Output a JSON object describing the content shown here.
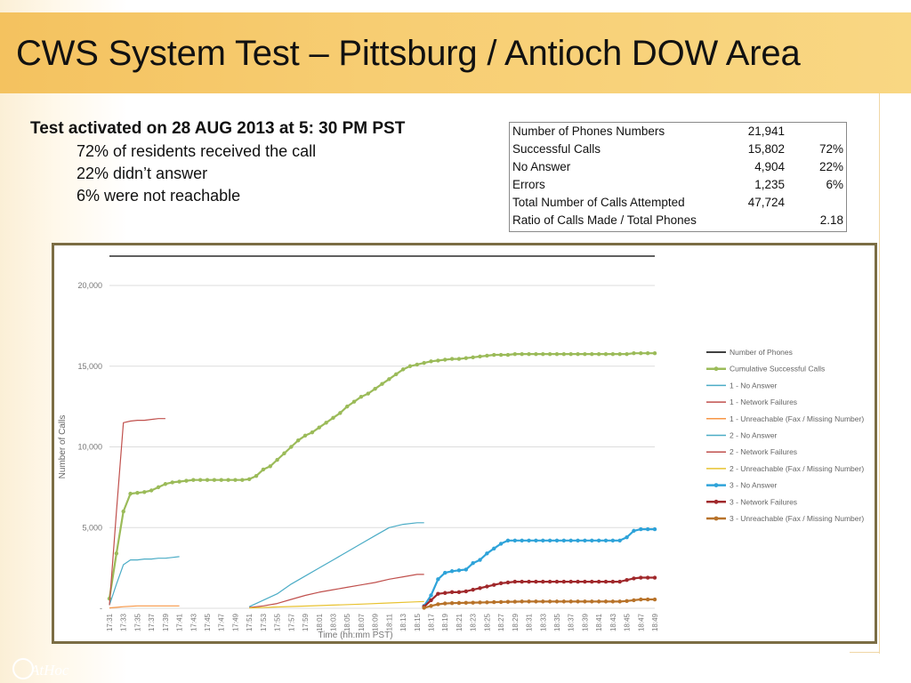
{
  "slide": {
    "title": "CWS System Test – Pittsburg / Antioch DOW Area",
    "headline": "Test activated on 28 AUG 2013 at 5: 30 PM PST",
    "bullets": [
      "72% of residents received the call",
      "22% didn’t answer",
      "6% were not reachable"
    ],
    "logo_text": "AtHoc"
  },
  "stats_table": [
    {
      "label": "Number of Phones Numbers",
      "value": "21,941",
      "pct": ""
    },
    {
      "label": "Successful Calls",
      "value": "15,802",
      "pct": "72%"
    },
    {
      "label": "No Answer",
      "value": "4,904",
      "pct": "22%"
    },
    {
      "label": "Errors",
      "value": "1,235",
      "pct": "6%"
    },
    {
      "label": "Total Number of Calls Attempted",
      "value": "47,724",
      "pct": ""
    },
    {
      "label": "Ratio of Calls Made / Total Phones",
      "value": "",
      "pct": "2.18"
    }
  ],
  "chart_data": {
    "type": "line",
    "xlabel": "Time (hh:mm PST)",
    "ylabel": "Number of Calls",
    "ylim": [
      0,
      20000
    ],
    "yticks": [
      0,
      5000,
      10000,
      15000,
      20000
    ],
    "ytick_labels": [
      "-",
      "5,000",
      "10,000",
      "15,000",
      "20,000"
    ],
    "x_tick_labels": [
      "17:31",
      "17:33",
      "17:35",
      "17:37",
      "17:39",
      "17:41",
      "17:43",
      "17:45",
      "17:47",
      "17:49",
      "17:51",
      "17:53",
      "17:55",
      "17:57",
      "17:59",
      "18:01",
      "18:03",
      "18:05",
      "18:07",
      "18:09",
      "18:11",
      "18:13",
      "18:15",
      "18:17",
      "18:19",
      "18:21",
      "18:23",
      "18:25",
      "18:27",
      "18:29",
      "18:31",
      "18:33",
      "18:35",
      "18:37",
      "18:39",
      "18:41",
      "18:43",
      "18:45",
      "18:47",
      "18:49"
    ],
    "x_range": [
      "17:31",
      "18:49"
    ],
    "grid": "horizontal",
    "legend_position": "right",
    "series": [
      {
        "name": "Number of Phones",
        "color": "#000000",
        "marker": false,
        "x": [
          "17:31",
          "18:49"
        ],
        "y": [
          21941,
          21941
        ]
      },
      {
        "name": "Cumulative Successful Calls",
        "color": "#9bbb59",
        "marker": true,
        "x": [
          "17:31",
          "17:32",
          "17:33",
          "17:34",
          "17:35",
          "17:36",
          "17:37",
          "17:38",
          "17:39",
          "17:40",
          "17:41",
          "17:42",
          "17:43",
          "17:44",
          "17:45",
          "17:46",
          "17:47",
          "17:48",
          "17:49",
          "17:50",
          "17:51",
          "17:52",
          "17:53",
          "17:54",
          "17:55",
          "17:56",
          "17:57",
          "17:58",
          "17:59",
          "18:00",
          "18:01",
          "18:02",
          "18:03",
          "18:04",
          "18:05",
          "18:06",
          "18:07",
          "18:08",
          "18:09",
          "18:10",
          "18:11",
          "18:12",
          "18:13",
          "18:14",
          "18:15",
          "18:16",
          "18:17",
          "18:18",
          "18:19",
          "18:20",
          "18:21",
          "18:22",
          "18:23",
          "18:24",
          "18:25",
          "18:26",
          "18:27",
          "18:28",
          "18:29",
          "18:30",
          "18:31",
          "18:32",
          "18:33",
          "18:34",
          "18:35",
          "18:36",
          "18:37",
          "18:38",
          "18:39",
          "18:40",
          "18:41",
          "18:42",
          "18:43",
          "18:44",
          "18:45",
          "18:46",
          "18:47",
          "18:48",
          "18:49"
        ],
        "y": [
          600,
          3400,
          6000,
          7100,
          7150,
          7200,
          7300,
          7500,
          7700,
          7800,
          7850,
          7900,
          7950,
          7950,
          7950,
          7950,
          7950,
          7950,
          7950,
          7950,
          8000,
          8200,
          8600,
          8800,
          9200,
          9600,
          10000,
          10400,
          10700,
          10900,
          11200,
          11500,
          11800,
          12100,
          12500,
          12800,
          13100,
          13300,
          13600,
          13900,
          14200,
          14500,
          14800,
          15000,
          15100,
          15200,
          15300,
          15350,
          15400,
          15450,
          15450,
          15500,
          15550,
          15600,
          15650,
          15700,
          15700,
          15700,
          15750,
          15750,
          15750,
          15750,
          15750,
          15750,
          15750,
          15750,
          15750,
          15750,
          15750,
          15750,
          15750,
          15750,
          15750,
          15750,
          15750,
          15800,
          15800,
          15800,
          15800
        ]
      },
      {
        "name": "1 - No Answer",
        "color": "#4bacc6",
        "marker": false,
        "x": [
          "17:31",
          "17:32",
          "17:33",
          "17:34",
          "17:35",
          "17:36",
          "17:37",
          "17:38",
          "17:39",
          "17:40",
          "17:41"
        ],
        "y": [
          200,
          1500,
          2700,
          3000,
          3000,
          3050,
          3050,
          3100,
          3100,
          3150,
          3200
        ]
      },
      {
        "name": "1 - Network Failures",
        "color": "#c0504d",
        "marker": false,
        "x": [
          "17:31",
          "17:32",
          "17:33",
          "17:34",
          "17:35",
          "17:36",
          "17:37",
          "17:38",
          "17:39"
        ],
        "y": [
          200,
          6000,
          11500,
          11600,
          11650,
          11650,
          11700,
          11750,
          11750
        ]
      },
      {
        "name": "1 - Unreachable (Fax / Missing Number)",
        "color": "#f79646",
        "marker": false,
        "x": [
          "17:31",
          "17:33",
          "17:35",
          "17:41"
        ],
        "y": [
          20,
          100,
          150,
          150
        ]
      },
      {
        "name": "2 - No Answer",
        "color": "#4bacc6",
        "marker": false,
        "x": [
          "17:51",
          "17:53",
          "17:55",
          "17:57",
          "17:59",
          "18:01",
          "18:03",
          "18:05",
          "18:07",
          "18:09",
          "18:11",
          "18:13",
          "18:15",
          "18:16"
        ],
        "y": [
          100,
          500,
          900,
          1500,
          2000,
          2500,
          3000,
          3500,
          4000,
          4500,
          5000,
          5200,
          5300,
          5300
        ]
      },
      {
        "name": "2 - Network Failures",
        "color": "#c0504d",
        "marker": false,
        "x": [
          "17:51",
          "17:53",
          "17:55",
          "17:57",
          "17:59",
          "18:01",
          "18:03",
          "18:05",
          "18:07",
          "18:09",
          "18:11",
          "18:13",
          "18:15",
          "18:16"
        ],
        "y": [
          50,
          150,
          300,
          550,
          800,
          1000,
          1150,
          1300,
          1450,
          1600,
          1800,
          1950,
          2100,
          2100
        ]
      },
      {
        "name": "2 - Unreachable (Fax / Missing Number)",
        "color": "#e8c230",
        "marker": false,
        "x": [
          "17:51",
          "17:55",
          "17:59",
          "18:03",
          "18:07",
          "18:11",
          "18:15",
          "18:16"
        ],
        "y": [
          20,
          80,
          140,
          200,
          260,
          330,
          400,
          420
        ]
      },
      {
        "name": "3 - No Answer",
        "color": "#2ea3d9",
        "marker": true,
        "x": [
          "18:16",
          "18:17",
          "18:18",
          "18:19",
          "18:20",
          "18:21",
          "18:22",
          "18:23",
          "18:24",
          "18:25",
          "18:26",
          "18:27",
          "18:28",
          "18:29",
          "18:30",
          "18:31",
          "18:32",
          "18:33",
          "18:34",
          "18:35",
          "18:36",
          "18:37",
          "18:38",
          "18:39",
          "18:40",
          "18:41",
          "18:42",
          "18:43",
          "18:44",
          "18:45",
          "18:46",
          "18:47",
          "18:48",
          "18:49"
        ],
        "y": [
          150,
          800,
          1800,
          2200,
          2300,
          2350,
          2400,
          2800,
          3000,
          3400,
          3700,
          4000,
          4200,
          4200,
          4200,
          4200,
          4200,
          4200,
          4200,
          4200,
          4200,
          4200,
          4200,
          4200,
          4200,
          4200,
          4200,
          4200,
          4200,
          4400,
          4800,
          4900,
          4900,
          4900
        ]
      },
      {
        "name": "3 - Network Failures",
        "color": "#a0282b",
        "marker": true,
        "x": [
          "18:16",
          "18:17",
          "18:18",
          "18:19",
          "18:20",
          "18:21",
          "18:22",
          "18:23",
          "18:24",
          "18:25",
          "18:26",
          "18:27",
          "18:28",
          "18:29",
          "18:30",
          "18:31",
          "18:32",
          "18:33",
          "18:34",
          "18:35",
          "18:36",
          "18:37",
          "18:38",
          "18:39",
          "18:40",
          "18:41",
          "18:42",
          "18:43",
          "18:44",
          "18:45",
          "18:46",
          "18:47",
          "18:48",
          "18:49"
        ],
        "y": [
          100,
          500,
          900,
          950,
          1000,
          1000,
          1050,
          1150,
          1250,
          1350,
          1450,
          1550,
          1600,
          1650,
          1650,
          1650,
          1650,
          1650,
          1650,
          1650,
          1650,
          1650,
          1650,
          1650,
          1650,
          1650,
          1650,
          1650,
          1650,
          1750,
          1850,
          1900,
          1900,
          1900
        ]
      },
      {
        "name": "3 - Unreachable (Fax / Missing Number)",
        "color": "#b8732a",
        "marker": true,
        "x": [
          "18:16",
          "18:17",
          "18:18",
          "18:19",
          "18:20",
          "18:21",
          "18:22",
          "18:23",
          "18:24",
          "18:25",
          "18:26",
          "18:27",
          "18:28",
          "18:29",
          "18:30",
          "18:31",
          "18:32",
          "18:33",
          "18:34",
          "18:35",
          "18:36",
          "18:37",
          "18:38",
          "18:39",
          "18:40",
          "18:41",
          "18:42",
          "18:43",
          "18:44",
          "18:45",
          "18:46",
          "18:47",
          "18:48",
          "18:49"
        ],
        "y": [
          30,
          150,
          250,
          300,
          320,
          330,
          340,
          350,
          360,
          370,
          380,
          390,
          400,
          410,
          420,
          420,
          420,
          420,
          420,
          420,
          420,
          420,
          420,
          420,
          420,
          420,
          420,
          420,
          420,
          450,
          500,
          550,
          550,
          550
        ]
      }
    ]
  }
}
